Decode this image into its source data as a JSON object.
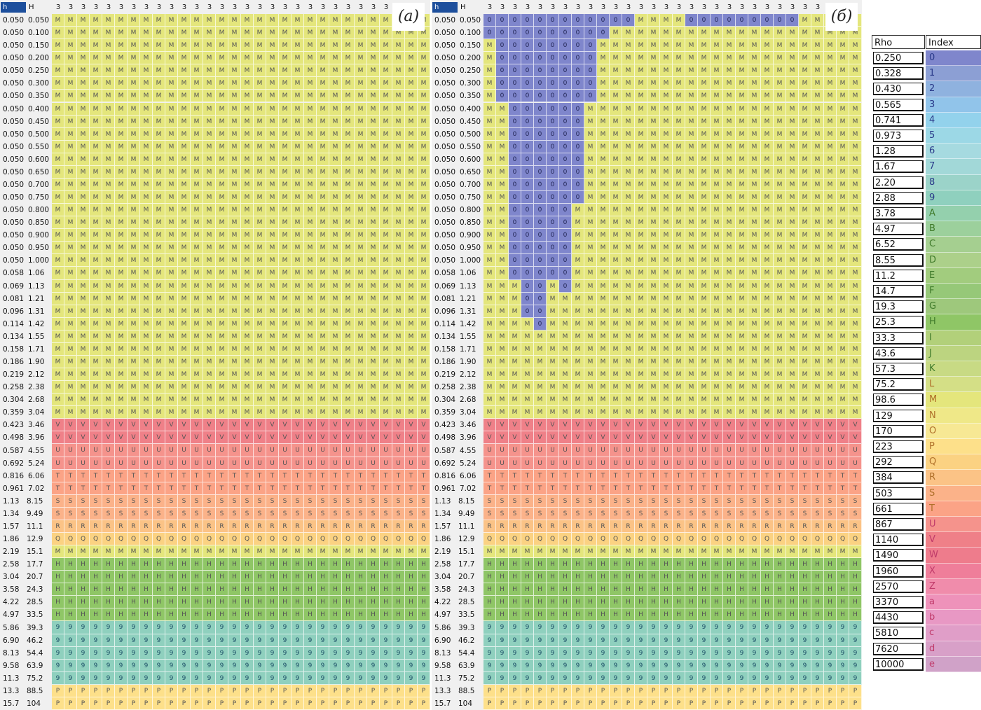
{
  "chart_data": {
    "type": "heatmap",
    "row_headers": [
      "h",
      "H"
    ],
    "column_header": "3",
    "rows": [
      {
        "h": "0.050",
        "H": "0.050"
      },
      {
        "h": "0.050",
        "H": "0.100"
      },
      {
        "h": "0.050",
        "H": "0.150"
      },
      {
        "h": "0.050",
        "H": "0.200"
      },
      {
        "h": "0.050",
        "H": "0.250"
      },
      {
        "h": "0.050",
        "H": "0.300"
      },
      {
        "h": "0.050",
        "H": "0.350"
      },
      {
        "h": "0.050",
        "H": "0.400"
      },
      {
        "h": "0.050",
        "H": "0.450"
      },
      {
        "h": "0.050",
        "H": "0.500"
      },
      {
        "h": "0.050",
        "H": "0.550"
      },
      {
        "h": "0.050",
        "H": "0.600"
      },
      {
        "h": "0.050",
        "H": "0.650"
      },
      {
        "h": "0.050",
        "H": "0.700"
      },
      {
        "h": "0.050",
        "H": "0.750"
      },
      {
        "h": "0.050",
        "H": "0.800"
      },
      {
        "h": "0.050",
        "H": "0.850"
      },
      {
        "h": "0.050",
        "H": "0.900"
      },
      {
        "h": "0.050",
        "H": "0.950"
      },
      {
        "h": "0.050",
        "H": "1.000"
      },
      {
        "h": "0.058",
        "H": "1.06"
      },
      {
        "h": "0.069",
        "H": "1.13"
      },
      {
        "h": "0.081",
        "H": "1.21"
      },
      {
        "h": "0.096",
        "H": "1.31"
      },
      {
        "h": "0.114",
        "H": "1.42"
      },
      {
        "h": "0.134",
        "H": "1.55"
      },
      {
        "h": "0.158",
        "H": "1.71"
      },
      {
        "h": "0.186",
        "H": "1.90"
      },
      {
        "h": "0.219",
        "H": "2.12"
      },
      {
        "h": "0.258",
        "H": "2.38"
      },
      {
        "h": "0.304",
        "H": "2.68"
      },
      {
        "h": "0.359",
        "H": "3.04"
      },
      {
        "h": "0.423",
        "H": "3.46"
      },
      {
        "h": "0.498",
        "H": "3.96"
      },
      {
        "h": "0.587",
        "H": "4.55"
      },
      {
        "h": "0.692",
        "H": "5.24"
      },
      {
        "h": "0.816",
        "H": "6.06"
      },
      {
        "h": "0.961",
        "H": "7.02"
      },
      {
        "h": "1.13",
        "H": "8.15"
      },
      {
        "h": "1.34",
        "H": "9.49"
      },
      {
        "h": "1.57",
        "H": "11.1"
      },
      {
        "h": "1.86",
        "H": "12.9"
      },
      {
        "h": "2.19",
        "H": "15.1"
      },
      {
        "h": "2.58",
        "H": "17.7"
      },
      {
        "h": "3.04",
        "H": "20.7"
      },
      {
        "h": "3.58",
        "H": "24.3"
      },
      {
        "h": "4.22",
        "H": "28.5"
      },
      {
        "h": "4.97",
        "H": "33.5"
      },
      {
        "h": "5.86",
        "H": "39.3"
      },
      {
        "h": "6.90",
        "H": "46.2"
      },
      {
        "h": "8.13",
        "H": "54.4"
      },
      {
        "h": "9.58",
        "H": "63.9"
      },
      {
        "h": "11.3",
        "H": "75.2"
      },
      {
        "h": "13.3",
        "H": "88.5"
      },
      {
        "h": "15.7",
        "H": "104"
      }
    ],
    "panels": [
      {
        "label": "(a)",
        "columns": 30,
        "header_count": 27,
        "row_fills": [
          "M",
          "M",
          "M",
          "M",
          "M",
          "M",
          "M",
          "M",
          "M",
          "M",
          "M",
          "M",
          "M",
          "M",
          "M",
          "M",
          "M",
          "M",
          "M",
          "M",
          "M",
          "M",
          "M",
          "M",
          "M",
          "M",
          "M",
          "M",
          "M",
          "M",
          "M",
          "M",
          "V",
          "V",
          "U",
          "U",
          "T",
          "T",
          "S",
          "S",
          "R",
          "Q",
          "M",
          "H",
          "H",
          "H",
          "H",
          "H",
          "9",
          "9",
          "9",
          "9",
          "9",
          "P",
          "P"
        ],
        "overrides": []
      },
      {
        "label": "(б)",
        "columns": 30,
        "header_count": 27,
        "row_fills": [
          "M",
          "M",
          "M",
          "M",
          "M",
          "M",
          "M",
          "M",
          "M",
          "M",
          "M",
          "M",
          "M",
          "M",
          "M",
          "M",
          "M",
          "M",
          "M",
          "M",
          "M",
          "M",
          "M",
          "M",
          "M",
          "M",
          "M",
          "M",
          "M",
          "M",
          "M",
          "M",
          "V",
          "V",
          "U",
          "U",
          "T",
          "T",
          "S",
          "S",
          "R",
          "Q",
          "M",
          "H",
          "H",
          "H",
          "H",
          "H",
          "9",
          "9",
          "9",
          "9",
          "9",
          "P",
          "P"
        ],
        "overrides": [
          {
            "row": 0,
            "from": 0,
            "to": 11,
            "v": "0"
          },
          {
            "row": 0,
            "from": 16,
            "to": 24,
            "v": "0"
          },
          {
            "row": 1,
            "from": 0,
            "to": 9,
            "v": "0"
          },
          {
            "row": 2,
            "from": 1,
            "to": 8,
            "v": "0"
          },
          {
            "row": 3,
            "from": 1,
            "to": 8,
            "v": "0"
          },
          {
            "row": 4,
            "from": 1,
            "to": 8,
            "v": "0"
          },
          {
            "row": 5,
            "from": 1,
            "to": 8,
            "v": "0"
          },
          {
            "row": 6,
            "from": 1,
            "to": 8,
            "v": "0"
          },
          {
            "row": 7,
            "from": 2,
            "to": 7,
            "v": "0"
          },
          {
            "row": 8,
            "from": 2,
            "to": 7,
            "v": "0"
          },
          {
            "row": 9,
            "from": 2,
            "to": 7,
            "v": "0"
          },
          {
            "row": 10,
            "from": 2,
            "to": 7,
            "v": "0"
          },
          {
            "row": 11,
            "from": 2,
            "to": 7,
            "v": "0"
          },
          {
            "row": 12,
            "from": 2,
            "to": 7,
            "v": "0"
          },
          {
            "row": 13,
            "from": 2,
            "to": 7,
            "v": "0"
          },
          {
            "row": 14,
            "from": 2,
            "to": 7,
            "v": "0"
          },
          {
            "row": 15,
            "from": 2,
            "to": 6,
            "v": "0"
          },
          {
            "row": 16,
            "from": 2,
            "to": 6,
            "v": "0"
          },
          {
            "row": 17,
            "from": 2,
            "to": 6,
            "v": "0"
          },
          {
            "row": 18,
            "from": 2,
            "to": 6,
            "v": "0"
          },
          {
            "row": 19,
            "from": 2,
            "to": 6,
            "v": "0"
          },
          {
            "row": 20,
            "from": 2,
            "to": 4,
            "v": "0"
          },
          {
            "row": 20,
            "from": 5,
            "to": 6,
            "v": "0"
          },
          {
            "row": 21,
            "from": 3,
            "to": 4,
            "v": "0"
          },
          {
            "row": 21,
            "from": 6,
            "to": 6,
            "v": "0"
          },
          {
            "row": 22,
            "from": 3,
            "to": 4,
            "v": "0"
          },
          {
            "row": 23,
            "from": 3,
            "to": 4,
            "v": "0"
          },
          {
            "row": 24,
            "from": 4,
            "to": 4,
            "v": "0"
          }
        ]
      }
    ],
    "legend": {
      "headers": [
        "Rho",
        "Index"
      ],
      "rho": [
        "0.250",
        "0.328",
        "0.430",
        "0.565",
        "0.741",
        "0.973",
        "1.28",
        "1.67",
        "2.20",
        "2.88",
        "3.78",
        "4.97",
        "6.52",
        "8.55",
        "11.2",
        "14.7",
        "19.3",
        "25.3",
        "33.3",
        "43.6",
        "57.3",
        "75.2",
        "98.6",
        "129",
        "170",
        "223",
        "292",
        "384",
        "503",
        "661",
        "867",
        "1140",
        "1490",
        "1960",
        "2570",
        "3370",
        "4430",
        "5810",
        "7620",
        "10000"
      ],
      "index": [
        "0",
        "1",
        "2",
        "3",
        "4",
        "5",
        "6",
        "7",
        "8",
        "9",
        "A",
        "B",
        "C",
        "D",
        "E",
        "F",
        "G",
        "H",
        "I",
        "J",
        "K",
        "L",
        "M",
        "N",
        "O",
        "P",
        "Q",
        "R",
        "S",
        "T",
        "U",
        "V",
        "W",
        "X",
        "Z",
        "a",
        "b",
        "c",
        "d",
        "e"
      ],
      "colors": [
        "#7f86cc",
        "#8c9fd4",
        "#8fb2df",
        "#91c4ea",
        "#93d2ec",
        "#9cd8e6",
        "#a6dae0",
        "#a2d8d8",
        "#9bd3c9",
        "#8fd0be",
        "#94d0ad",
        "#9cd09c",
        "#a5cf90",
        "#acd08a",
        "#a2cc7e",
        "#96c878",
        "#9ec87c",
        "#8fc666",
        "#b2d07a",
        "#bcd480",
        "#c8da84",
        "#d4df86",
        "#e4e67c",
        "#efe888",
        "#f7e894",
        "#fde08a",
        "#fbd282",
        "#fbc386",
        "#fbb289",
        "#fba386",
        "#f5938c",
        "#ef8088",
        "#ee7c8c",
        "#ef7e9a",
        "#f08cab",
        "#ee92ba",
        "#e898c4",
        "#e09ec8",
        "#d8a0c8",
        "#d0a2c8"
      ]
    }
  }
}
